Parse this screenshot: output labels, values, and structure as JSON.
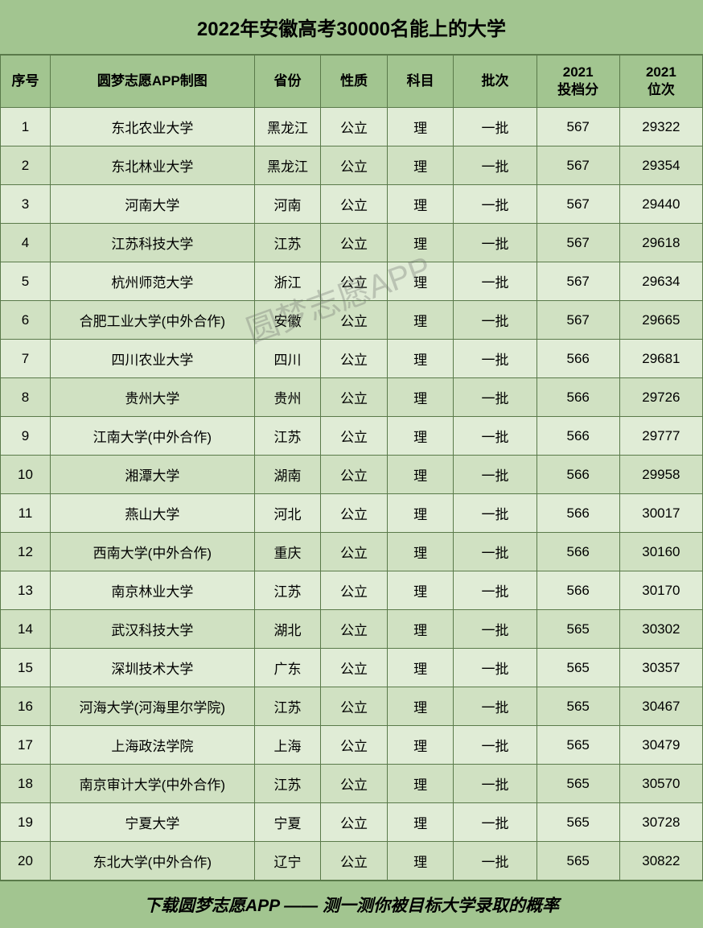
{
  "title": "2022年安徽高考30000名能上的大学",
  "watermark": "圆梦志愿APP",
  "columns": [
    "序号",
    "圆梦志愿APP制图",
    "省份",
    "性质",
    "科目",
    "批次",
    "2021\n投档分",
    "2021\n位次"
  ],
  "rows": [
    {
      "index": "1",
      "name": "东北农业大学",
      "province": "黑龙江",
      "nature": "公立",
      "subject": "理",
      "batch": "一批",
      "score": "567",
      "rank": "29322"
    },
    {
      "index": "2",
      "name": "东北林业大学",
      "province": "黑龙江",
      "nature": "公立",
      "subject": "理",
      "batch": "一批",
      "score": "567",
      "rank": "29354"
    },
    {
      "index": "3",
      "name": "河南大学",
      "province": "河南",
      "nature": "公立",
      "subject": "理",
      "batch": "一批",
      "score": "567",
      "rank": "29440"
    },
    {
      "index": "4",
      "name": "江苏科技大学",
      "province": "江苏",
      "nature": "公立",
      "subject": "理",
      "batch": "一批",
      "score": "567",
      "rank": "29618"
    },
    {
      "index": "5",
      "name": "杭州师范大学",
      "province": "浙江",
      "nature": "公立",
      "subject": "理",
      "batch": "一批",
      "score": "567",
      "rank": "29634"
    },
    {
      "index": "6",
      "name": "合肥工业大学(中外合作)",
      "province": "安徽",
      "nature": "公立",
      "subject": "理",
      "batch": "一批",
      "score": "567",
      "rank": "29665"
    },
    {
      "index": "7",
      "name": "四川农业大学",
      "province": "四川",
      "nature": "公立",
      "subject": "理",
      "batch": "一批",
      "score": "566",
      "rank": "29681"
    },
    {
      "index": "8",
      "name": "贵州大学",
      "province": "贵州",
      "nature": "公立",
      "subject": "理",
      "batch": "一批",
      "score": "566",
      "rank": "29726"
    },
    {
      "index": "9",
      "name": "江南大学(中外合作)",
      "province": "江苏",
      "nature": "公立",
      "subject": "理",
      "batch": "一批",
      "score": "566",
      "rank": "29777"
    },
    {
      "index": "10",
      "name": "湘潭大学",
      "province": "湖南",
      "nature": "公立",
      "subject": "理",
      "batch": "一批",
      "score": "566",
      "rank": "29958"
    },
    {
      "index": "11",
      "name": "燕山大学",
      "province": "河北",
      "nature": "公立",
      "subject": "理",
      "batch": "一批",
      "score": "566",
      "rank": "30017"
    },
    {
      "index": "12",
      "name": "西南大学(中外合作)",
      "province": "重庆",
      "nature": "公立",
      "subject": "理",
      "batch": "一批",
      "score": "566",
      "rank": "30160"
    },
    {
      "index": "13",
      "name": "南京林业大学",
      "province": "江苏",
      "nature": "公立",
      "subject": "理",
      "batch": "一批",
      "score": "566",
      "rank": "30170"
    },
    {
      "index": "14",
      "name": "武汉科技大学",
      "province": "湖北",
      "nature": "公立",
      "subject": "理",
      "batch": "一批",
      "score": "565",
      "rank": "30302"
    },
    {
      "index": "15",
      "name": "深圳技术大学",
      "province": "广东",
      "nature": "公立",
      "subject": "理",
      "batch": "一批",
      "score": "565",
      "rank": "30357"
    },
    {
      "index": "16",
      "name": "河海大学(河海里尔学院)",
      "province": "江苏",
      "nature": "公立",
      "subject": "理",
      "batch": "一批",
      "score": "565",
      "rank": "30467"
    },
    {
      "index": "17",
      "name": "上海政法学院",
      "province": "上海",
      "nature": "公立",
      "subject": "理",
      "batch": "一批",
      "score": "565",
      "rank": "30479"
    },
    {
      "index": "18",
      "name": "南京审计大学(中外合作)",
      "province": "江苏",
      "nature": "公立",
      "subject": "理",
      "batch": "一批",
      "score": "565",
      "rank": "30570"
    },
    {
      "index": "19",
      "name": "宁夏大学",
      "province": "宁夏",
      "nature": "公立",
      "subject": "理",
      "batch": "一批",
      "score": "565",
      "rank": "30728"
    },
    {
      "index": "20",
      "name": "东北大学(中外合作)",
      "province": "辽宁",
      "nature": "公立",
      "subject": "理",
      "batch": "一批",
      "score": "565",
      "rank": "30822"
    }
  ],
  "footer": "下载圆梦志愿APP —— 测一测你被目标大学录取的概率",
  "styling": {
    "header_bg": "#a2c590",
    "row_odd_bg": "#e0ecd6",
    "row_even_bg": "#d0e1c2",
    "border_color": "#5a7a4a",
    "text_color": "#000000",
    "title_fontsize": 24,
    "header_fontsize": 17,
    "cell_fontsize": 17,
    "footer_fontsize": 21
  }
}
